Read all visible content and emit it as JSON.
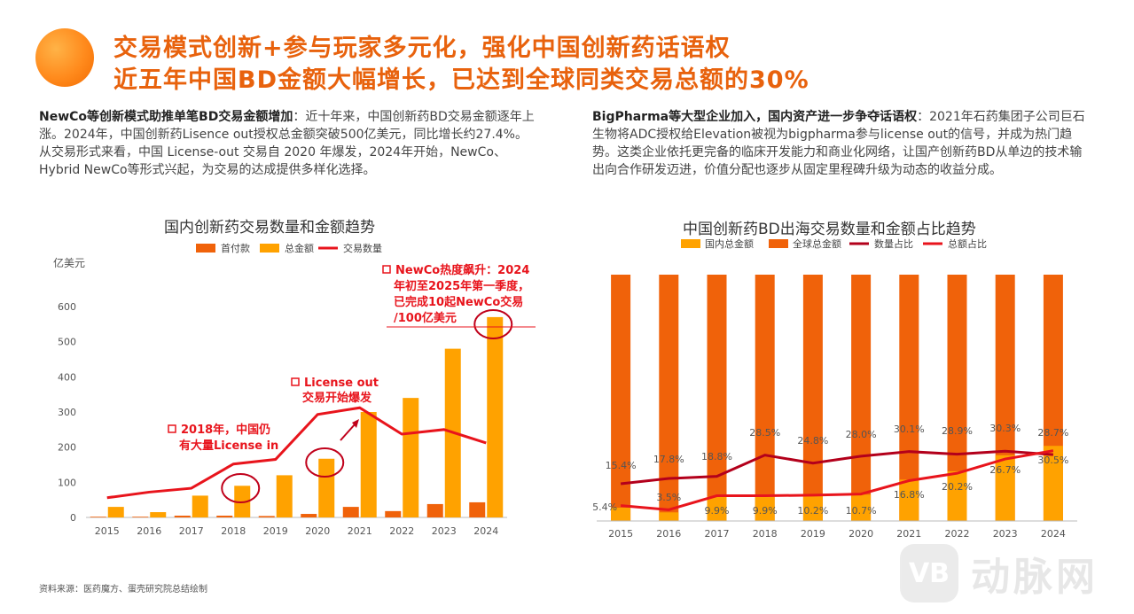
{
  "header": {
    "title_line1": "交易模式创新+参与玩家多元化，强化中国创新药话语权",
    "title_line2": "近五年中国BD金额大幅增长，已达到全球同类交易总额的30%"
  },
  "left_text": {
    "bold": "NewCo等创新模式助推单笔BD交易金额增加",
    "body": "：近十年来，中国创新药BD交易金额逐年上涨。2024年，中国创新药Lisence out授权总金额突破500亿美元，同比增长约27.4%。从交易形式来看，中国 License-out 交易自 2020 年爆发，2024年开始，NewCo、Hybrid NewCo等形式兴起，为交易的达成提供多样化选择。"
  },
  "right_text": {
    "bold": "BigPharma等大型企业加入，国内资产进一步争夺话语权",
    "body": "：2021年石药集团子公司巨石生物将ADC授权给Elevation被视为bigpharma参与license out的信号，并成为热门趋势。这类企业依托更完备的临床开发能力和商业化网络，让国产创新药BD从单边的技术输出向合作研发迈进，价值分配也逐步从固定里程碑升级为动态的收益分成。"
  },
  "source": "资料来源：医药魔方、蛋壳研究院总结绘制",
  "watermark": {
    "badge": "VB",
    "text": "动脉网"
  },
  "colors": {
    "accent": "#e8620d",
    "dark_orange": "#f0620a",
    "light_orange": "#ffa200",
    "red": "#e8141c",
    "dark_red": "#b3001b"
  },
  "chart_data": [
    {
      "type": "bar",
      "title": "国内创新药交易数量和金额趋势",
      "ylabel": "亿美元",
      "ylim": [
        0,
        600
      ],
      "yticks": [
        0,
        100,
        200,
        300,
        400,
        500,
        600
      ],
      "categories": [
        "2015",
        "2016",
        "2017",
        "2018",
        "2019",
        "2020",
        "2021",
        "2022",
        "2023",
        "2024"
      ],
      "series": [
        {
          "name": "首付款",
          "kind": "bar",
          "color": "#f0620a",
          "values": [
            2,
            2,
            5,
            5,
            4,
            10,
            30,
            18,
            38,
            43
          ]
        },
        {
          "name": "总金额",
          "kind": "bar",
          "color": "#ffa200",
          "values": [
            30,
            15,
            62,
            90,
            120,
            167,
            300,
            340,
            480,
            570
          ]
        },
        {
          "name": "交易数量",
          "kind": "line",
          "color": "#e8141c",
          "values": [
            56,
            72,
            83,
            152,
            165,
            293,
            312,
            237,
            250,
            212
          ]
        }
      ],
      "annotations": [
        {
          "text": [
            "2018年，中国仍",
            "有大量License in"
          ],
          "category": "2018"
        },
        {
          "text": [
            "License out",
            "交易开始爆发"
          ],
          "category": "2021"
        },
        {
          "text": [
            "NewCo热度飙升：2024",
            "年初至2025年第一季度，",
            "已完成10起NewCo交易",
            "/100亿美元"
          ],
          "category": "2024"
        }
      ]
    },
    {
      "type": "bar",
      "title": "中国创新药BD出海交易数量和金额占比趋势",
      "categories": [
        "2015",
        "2016",
        "2017",
        "2018",
        "2019",
        "2020",
        "2021",
        "2022",
        "2023",
        "2024"
      ],
      "series": [
        {
          "name": "国内总金额",
          "kind": "bar",
          "color": "#ffa200",
          "values": [
            5.4,
            3.5,
            9.9,
            9.9,
            10.2,
            10.7,
            16.8,
            20.2,
            26.7,
            30.5
          ]
        },
        {
          "name": "全球总金额",
          "kind": "bar",
          "color": "#f0620a",
          "values": [
            100,
            100,
            100,
            100,
            100,
            100,
            100,
            100,
            100,
            100
          ]
        },
        {
          "name": "数量占比",
          "kind": "line",
          "color": "#b3001b",
          "values": [
            15.4,
            17.8,
            18.8,
            28.5,
            24.8,
            28.0,
            30.1,
            28.9,
            30.3,
            28.7
          ]
        },
        {
          "name": "总额占比",
          "kind": "line",
          "color": "#e8141c",
          "values": [
            5.4,
            3.5,
            9.9,
            9.9,
            10.2,
            10.7,
            16.8,
            20.2,
            26.7,
            30.5
          ]
        }
      ],
      "labels_count": [
        "15.4%",
        "17.8%",
        "18.8%",
        "28.5%",
        "24.8%",
        "28.0%",
        "30.1%",
        "28.9%",
        "30.3%",
        "28.7%"
      ],
      "labels_amount": [
        "5.4%",
        "3.5%",
        "9.9%",
        "9.9%",
        "10.2%",
        "10.7%",
        "16.8%",
        "20.2%",
        "26.7%",
        "30.5%"
      ]
    }
  ]
}
